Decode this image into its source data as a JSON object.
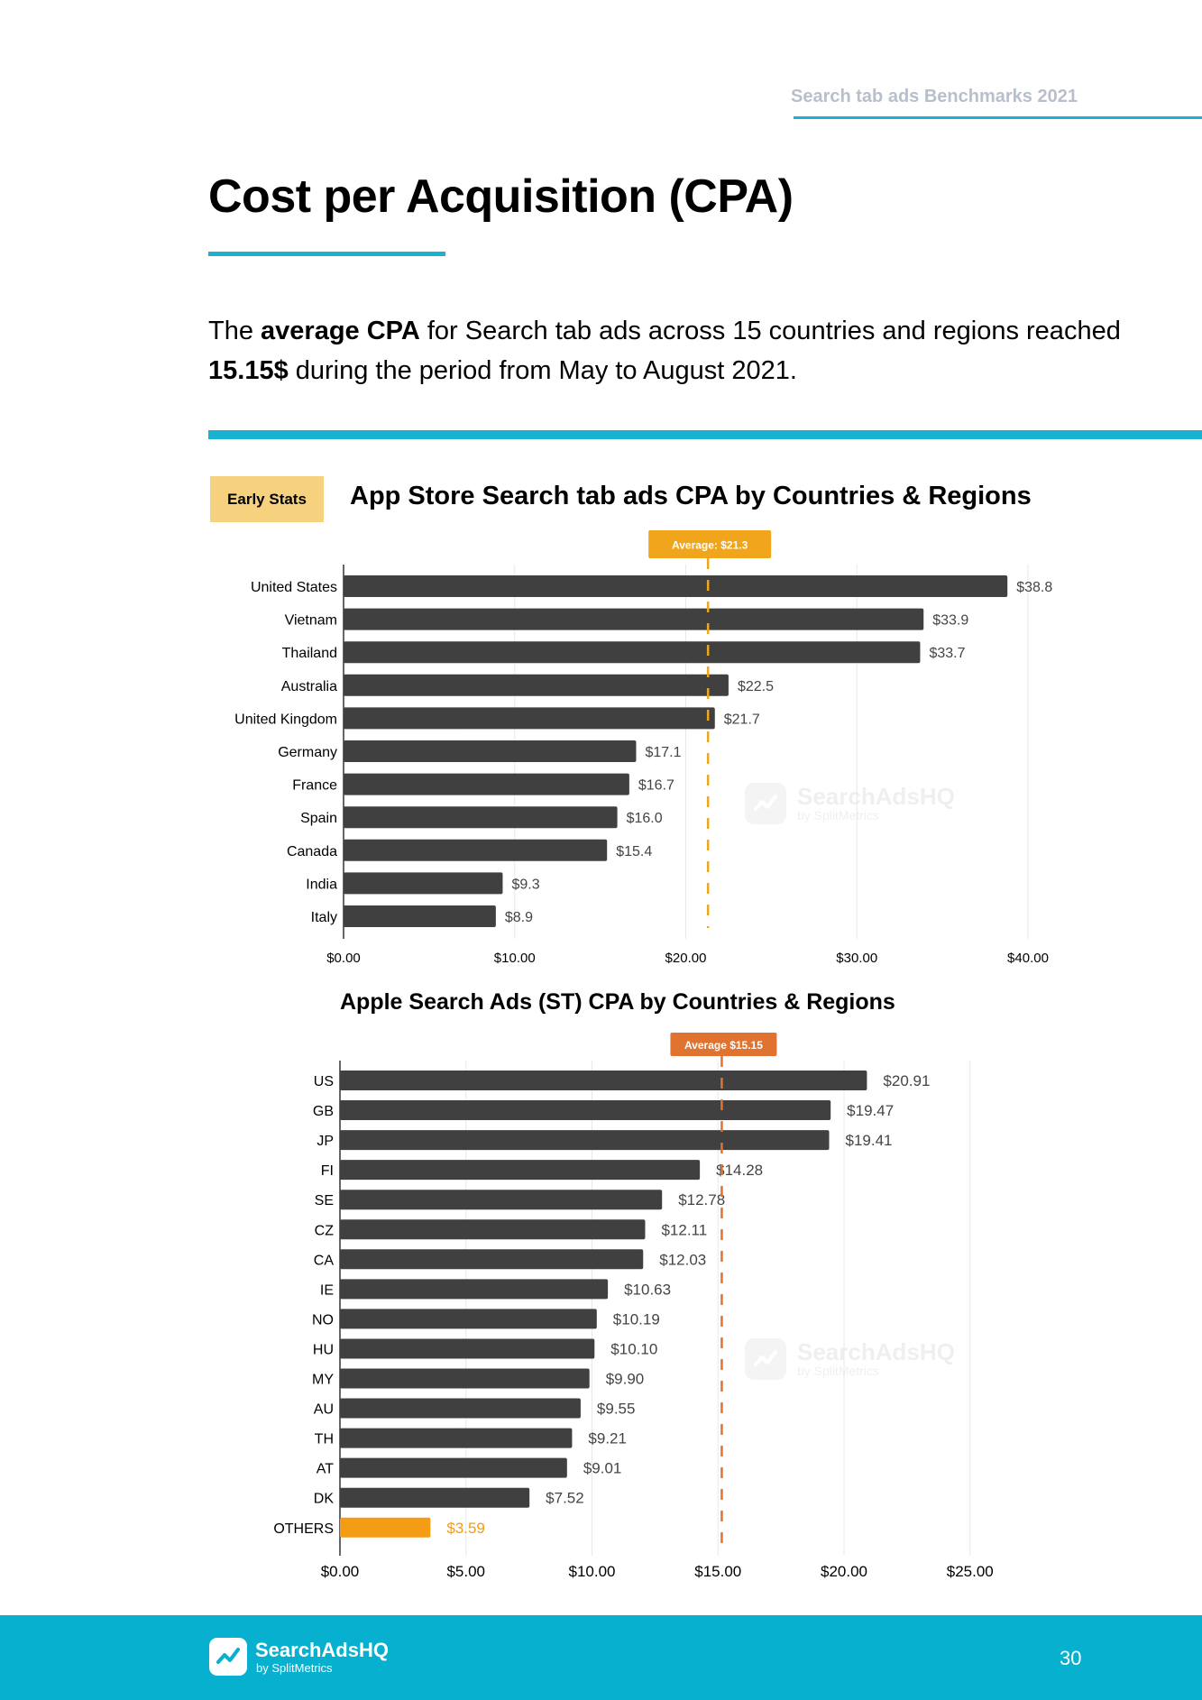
{
  "header": {
    "label": "Search tab ads Benchmarks 2021",
    "title": "Cost per Acquisition (CPA)"
  },
  "intro": {
    "p1": "The ",
    "b1": "average CPA",
    "p2": " for Search tab ads across 15 countries and regions reached ",
    "b2": "15.15$",
    "p3": " during the period from May to August 2021."
  },
  "badge": {
    "early_stats": "Early Stats"
  },
  "watermark": {
    "name": "SearchAdsHQ",
    "sub": "by SplitMetrics"
  },
  "footer": {
    "brand": "SearchAdsHQ",
    "sub": "by SplitMetrics",
    "page_number": "30"
  },
  "colors": {
    "accent": "#19b3d1",
    "footer": "#08b0cf",
    "bar": "#404040",
    "avg1": "#f0a51c",
    "avg2": "#e07330",
    "highlight": "#f49c14",
    "badge": "#f6d27f"
  },
  "chart_data": [
    {
      "type": "bar",
      "orientation": "horizontal",
      "title": "App Store Search tab ads CPA by Countries & Regions",
      "categories": [
        "United States",
        "Vietnam",
        "Thailand",
        "Australia",
        "United Kingdom",
        "Germany",
        "France",
        "Spain",
        "Canada",
        "India",
        "Italy"
      ],
      "values": [
        38.8,
        33.9,
        33.7,
        22.5,
        21.7,
        17.1,
        16.7,
        16.0,
        15.4,
        9.3,
        8.9
      ],
      "value_labels": [
        "$38.8",
        "$33.9",
        "$33.7",
        "$22.5",
        "$21.7",
        "$17.1",
        "$16.7",
        "$16.0",
        "$15.4",
        "$9.3",
        "$8.9"
      ],
      "xlim": [
        0,
        40
      ],
      "ticks": [
        0,
        10,
        20,
        30,
        40
      ],
      "tick_labels": [
        "$0.00",
        "$10.00",
        "$20.00",
        "$30.00",
        "$40.00"
      ],
      "average": 21.3,
      "average_label": "Average: $21.3",
      "highlight": []
    },
    {
      "type": "bar",
      "orientation": "horizontal",
      "title": "Apple Search Ads (ST) CPA by Countries & Regions",
      "categories": [
        "US",
        "GB",
        "JP",
        "FI",
        "SE",
        "CZ",
        "CA",
        "IE",
        "NO",
        "HU",
        "MY",
        "AU",
        "TH",
        "AT",
        "DK",
        "OTHERS"
      ],
      "values": [
        20.91,
        19.47,
        19.41,
        14.28,
        12.78,
        12.11,
        12.03,
        10.63,
        10.19,
        10.1,
        9.9,
        9.55,
        9.21,
        9.01,
        7.52,
        3.59
      ],
      "value_labels": [
        "$20.91",
        "$19.47",
        "$19.41",
        "$14.28",
        "$12.78",
        "$12.11",
        "$12.03",
        "$10.63",
        "$10.19",
        "$10.10",
        "$9.90",
        "$9.55",
        "$9.21",
        "$9.01",
        "$7.52",
        "$3.59"
      ],
      "xlim": [
        0,
        25
      ],
      "ticks": [
        0,
        5,
        10,
        15,
        20,
        25
      ],
      "tick_labels": [
        "$0.00",
        "$5.00",
        "$10.00",
        "$15.00",
        "$20.00",
        "$25.00"
      ],
      "average": 15.15,
      "average_label": "Average $15.15",
      "highlight": [
        "OTHERS"
      ]
    }
  ]
}
